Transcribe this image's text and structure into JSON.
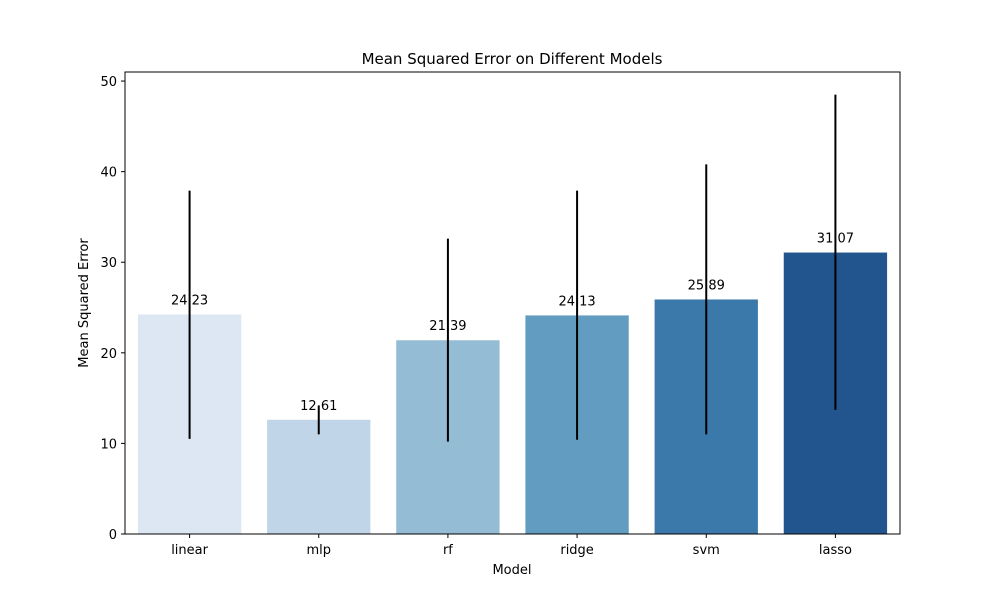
{
  "chart_data": {
    "type": "bar",
    "title": "Mean Squared Error on Different Models",
    "xlabel": "Model",
    "ylabel": "Mean Squared Error",
    "categories": [
      "linear",
      "mlp",
      "rf",
      "ridge",
      "svm",
      "lasso"
    ],
    "values": [
      24.23,
      12.61,
      21.39,
      24.13,
      25.89,
      31.07
    ],
    "data_labels": [
      "24.23",
      "12.61",
      "21.39",
      "24.13",
      "25.89",
      "31.07"
    ],
    "error_bars": [
      {
        "low": 10.5,
        "high": 37.9
      },
      {
        "low": 11.0,
        "high": 14.2
      },
      {
        "low": 10.2,
        "high": 32.6
      },
      {
        "low": 10.4,
        "high": 37.9
      },
      {
        "low": 11.0,
        "high": 40.8
      },
      {
        "low": 13.7,
        "high": 48.5
      }
    ],
    "colors": [
      "#dce7f3",
      "#c0d5e7",
      "#95bcd5",
      "#629dc1",
      "#3c79ab",
      "#22558e"
    ],
    "error_bar_color": "#000000",
    "ylim": [
      0,
      51
    ],
    "yticks": [
      0,
      10,
      20,
      30,
      40,
      50
    ],
    "ytick_labels": [
      "0",
      "10",
      "20",
      "30",
      "40",
      "50"
    ],
    "grid": false,
    "legend": "none"
  }
}
